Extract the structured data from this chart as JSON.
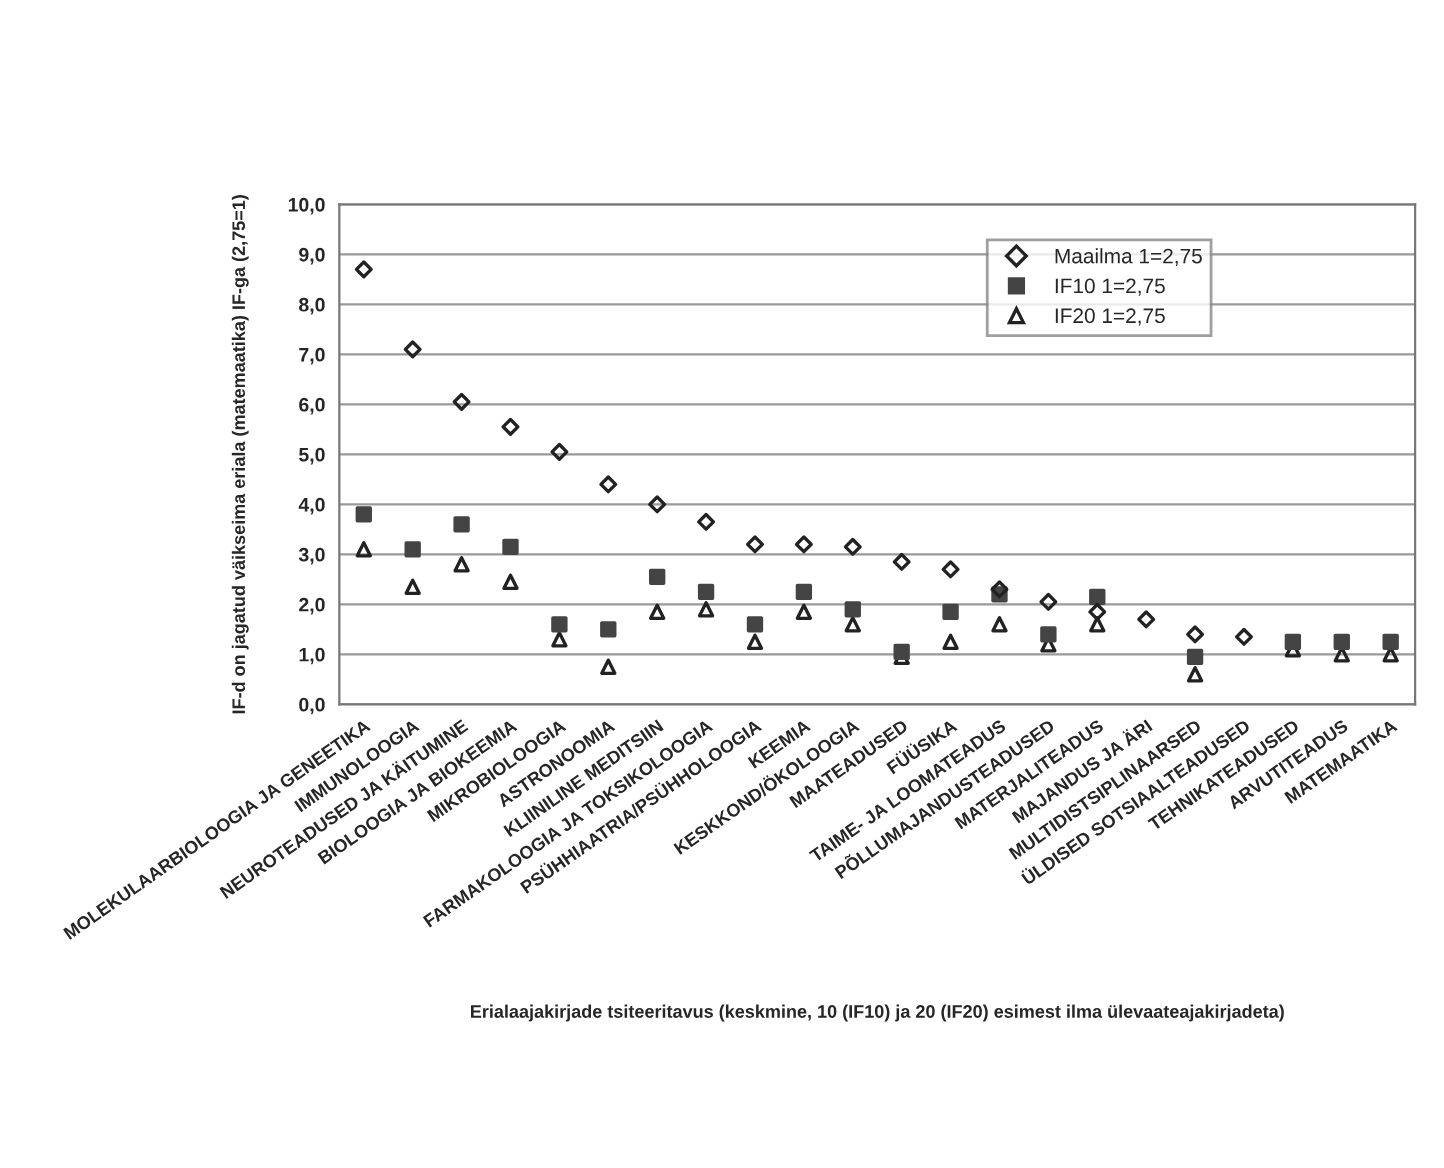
{
  "chart_data": {
    "type": "scatter",
    "xlabel": "Erialaajakirjade tsiteeritavus (keskmine, 10 (IF10) ja 20 (IF20) esimest ilma ülevaateajakirjadeta)",
    "ylabel": "IF-d on jagatud väikseima eriala (matemaatika) IF-ga (2,75=1)",
    "categories": [
      "MOLEKULAARBIOLOOGIA JA GENEETIKA",
      "IMMUNOLOOGIA",
      "NEUROTEADUSED JA KÄITUMINE",
      "BIOLOOGIA JA BIOKEEMIA",
      "MIKROBIOLOOGIA",
      "ASTRONOOMIA",
      "KLIINILINE MEDITSIIN",
      "FARMAKOLOOGIA JA TOKSIKOLOOGIA",
      "PSÜHHIAATRIA/PSÜHHOLOOGIA",
      "KEEMIA",
      "KESKKOND/ÖKOLOOGIA",
      "MAATEADUSED",
      "FÜÜSIKA",
      "TAIME- JA LOOMATEADUS",
      "PÕLLUMAJANDUSTEADUSED",
      "MATERJALITEADUS",
      "MAJANDUS JA ÄRI",
      "MULTIDISTSIPLINAARSED",
      "ÜLDISED SOTSIAALTEADUSED",
      "TEHNIKATEADUSED",
      "ARVUTITEADUS",
      "MATEMAATIKA"
    ],
    "series": [
      {
        "name": "Maailma 1=2,75",
        "color": "#222222",
        "marker": "diamond",
        "values": [
          8.7,
          7.1,
          6.05,
          5.55,
          5.05,
          4.4,
          4.0,
          3.65,
          3.2,
          3.2,
          3.15,
          2.85,
          2.7,
          2.3,
          2.05,
          1.85,
          1.7,
          1.4,
          1.35,
          null,
          null,
          null
        ]
      },
      {
        "name": "IF10 1=2,75",
        "color": "#444444",
        "marker": "square",
        "values": [
          3.8,
          3.1,
          3.6,
          3.15,
          1.6,
          1.5,
          2.55,
          2.25,
          1.6,
          2.25,
          1.9,
          1.05,
          1.85,
          2.2,
          1.4,
          2.15,
          null,
          0.95,
          null,
          1.25,
          1.25,
          1.25
        ]
      },
      {
        "name": "IF20 1=2,75",
        "color": "#222222",
        "marker": "triangle",
        "values": [
          3.1,
          2.35,
          2.8,
          2.45,
          1.3,
          0.75,
          1.85,
          1.9,
          1.25,
          1.85,
          1.6,
          0.95,
          1.25,
          1.6,
          1.2,
          1.6,
          null,
          0.6,
          null,
          1.1,
          1.0,
          1.0
        ]
      }
    ],
    "ylim": [
      0,
      10
    ],
    "yticks": [
      {
        "value": 0,
        "label": "0,0"
      },
      {
        "value": 1,
        "label": "1,0"
      },
      {
        "value": 2,
        "label": "2,0"
      },
      {
        "value": 3,
        "label": "3,0"
      },
      {
        "value": 4,
        "label": "4,0"
      },
      {
        "value": 5,
        "label": "5,0"
      },
      {
        "value": 6,
        "label": "6,0"
      },
      {
        "value": 7,
        "label": "7,0"
      },
      {
        "value": 8,
        "label": "8,0"
      },
      {
        "value": 9,
        "label": "9,0"
      },
      {
        "value": 10,
        "label": "10,0"
      }
    ],
    "grid": "y",
    "legend": "top right"
  }
}
